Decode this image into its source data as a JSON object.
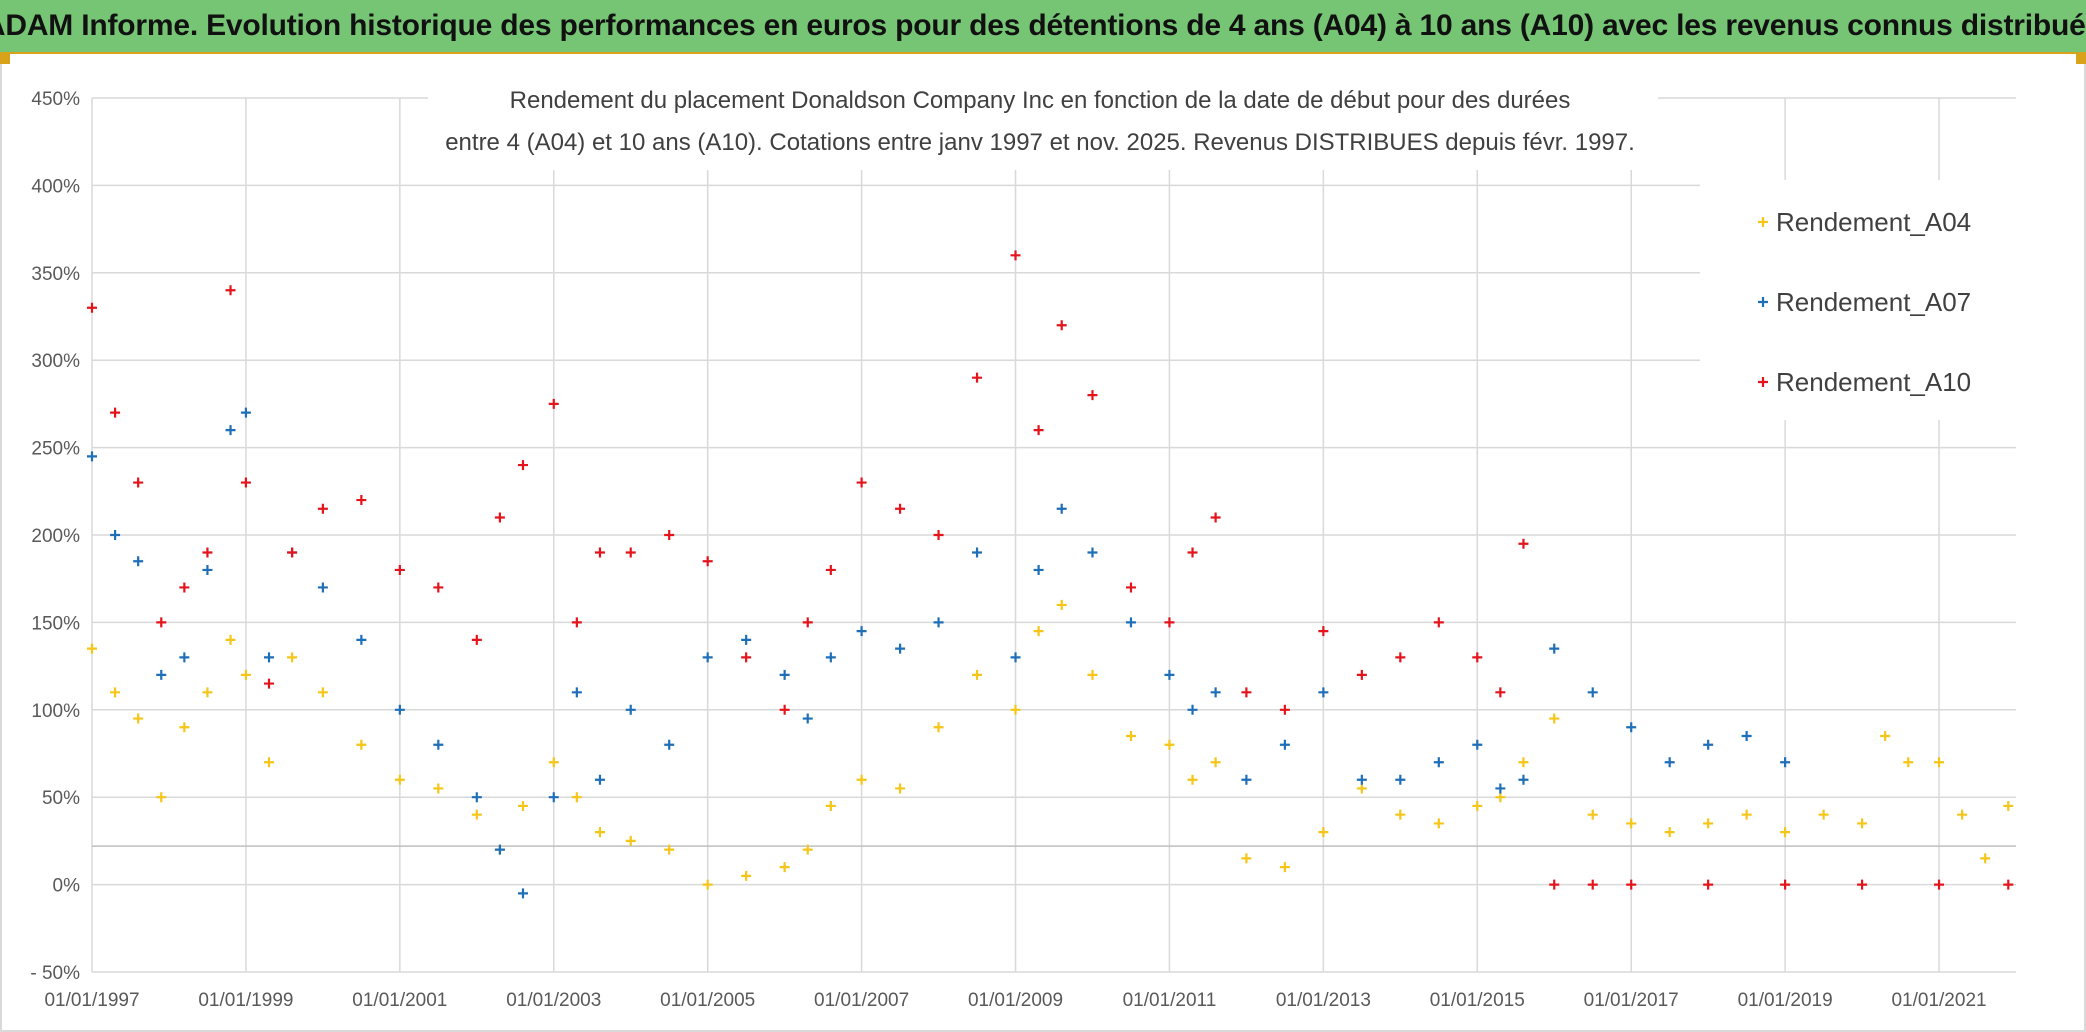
{
  "header": {
    "title": "ADAM Informe. Evolution historique des performances en euros pour des détentions de 4 ans (A04) à 10 ans (A10) avec les revenus connus distribués"
  },
  "chart_data": {
    "type": "scatter",
    "title_line1": "Rendement du placement Donaldson Company Inc en fonction de la date de début pour des durées",
    "title_line2": "entre 4 (A04) et 10 ans (A10). Cotations entre janv 1997 et nov. 2025. Revenus DISTRIBUES depuis févr. 1997.",
    "xlabel": "",
    "ylabel": "",
    "x_range": [
      1997.0,
      2022.0
    ],
    "ylim": [
      -50,
      450
    ],
    "y_ticks": [
      -50,
      0,
      50,
      100,
      150,
      200,
      250,
      300,
      350,
      400,
      450
    ],
    "y_tick_labels": [
      "- 50%",
      "0%",
      "50%",
      "100%",
      "150%",
      "200%",
      "250%",
      "300%",
      "350%",
      "400%",
      "450%"
    ],
    "x_ticks": [
      1997,
      1999,
      2001,
      2003,
      2005,
      2007,
      2009,
      2011,
      2013,
      2015,
      2017,
      2019,
      2021
    ],
    "x_tick_labels": [
      "01/01/1997",
      "01/01/1999",
      "01/01/2001",
      "01/01/2003",
      "01/01/2005",
      "01/01/2007",
      "01/01/2009",
      "01/01/2011",
      "01/01/2013",
      "01/01/2015",
      "01/01/2017",
      "01/01/2019",
      "01/01/2021"
    ],
    "grid": true,
    "legend_position": "top-right",
    "series": [
      {
        "name": "Rendement_A04",
        "color": "#f5c518",
        "x": [
          1997.0,
          1997.3,
          1997.6,
          1997.9,
          1998.2,
          1998.5,
          1998.8,
          1999.0,
          1999.3,
          1999.6,
          2000.0,
          2000.5,
          2001.0,
          2001.5,
          2002.0,
          2002.3,
          2002.6,
          2003.0,
          2003.3,
          2003.6,
          2004.0,
          2004.5,
          2005.0,
          2005.5,
          2006.0,
          2006.3,
          2006.6,
          2007.0,
          2007.5,
          2008.0,
          2008.5,
          2009.0,
          2009.3,
          2009.6,
          2010.0,
          2010.5,
          2011.0,
          2011.3,
          2011.6,
          2012.0,
          2012.5,
          2013.0,
          2013.5,
          2014.0,
          2014.5,
          2015.0,
          2015.3,
          2015.6,
          2016.0,
          2016.5,
          2017.0,
          2017.5,
          2018.0,
          2018.5,
          2019.0,
          2019.5,
          2020.0,
          2020.3,
          2020.6,
          2021.0,
          2021.3,
          2021.6,
          2021.9
        ],
        "values": [
          135,
          110,
          95,
          50,
          90,
          110,
          140,
          120,
          70,
          130,
          110,
          80,
          60,
          55,
          40,
          20,
          45,
          70,
          50,
          30,
          25,
          20,
          0,
          5,
          10,
          20,
          45,
          60,
          55,
          90,
          120,
          100,
          145,
          160,
          120,
          85,
          80,
          60,
          70,
          15,
          10,
          30,
          55,
          40,
          35,
          45,
          50,
          70,
          95,
          40,
          35,
          30,
          35,
          40,
          30,
          40,
          35,
          85,
          70,
          70,
          40,
          15,
          45
        ]
      },
      {
        "name": "Rendement_A07",
        "color": "#1f6fb8",
        "x": [
          1997.0,
          1997.3,
          1997.6,
          1997.9,
          1998.2,
          1998.5,
          1998.8,
          1999.0,
          1999.3,
          1999.6,
          2000.0,
          2000.5,
          2001.0,
          2001.5,
          2002.0,
          2002.3,
          2002.6,
          2003.0,
          2003.3,
          2003.6,
          2004.0,
          2004.5,
          2005.0,
          2005.5,
          2006.0,
          2006.3,
          2006.6,
          2007.0,
          2007.5,
          2008.0,
          2008.5,
          2009.0,
          2009.3,
          2009.6,
          2010.0,
          2010.5,
          2011.0,
          2011.3,
          2011.6,
          2012.0,
          2012.5,
          2013.0,
          2013.5,
          2014.0,
          2014.5,
          2015.0,
          2015.3,
          2015.6,
          2016.0,
          2016.5,
          2017.0,
          2017.5,
          2018.0,
          2018.5,
          2019.0
        ],
        "values": [
          245,
          200,
          185,
          120,
          130,
          180,
          260,
          270,
          130,
          190,
          170,
          140,
          100,
          80,
          50,
          20,
          -5,
          50,
          110,
          60,
          100,
          80,
          130,
          140,
          120,
          95,
          130,
          145,
          135,
          150,
          190,
          130,
          180,
          215,
          190,
          150,
          120,
          100,
          110,
          60,
          80,
          110,
          60,
          60,
          70,
          80,
          55,
          60,
          135,
          110,
          90,
          70,
          80,
          85,
          70
        ]
      },
      {
        "name": "Rendement_A10",
        "color": "#e3141b",
        "x": [
          1997.0,
          1997.3,
          1997.6,
          1997.9,
          1998.2,
          1998.5,
          1998.8,
          1999.0,
          1999.3,
          1999.6,
          2000.0,
          2000.5,
          2001.0,
          2001.5,
          2002.0,
          2002.3,
          2002.6,
          2003.0,
          2003.3,
          2003.6,
          2004.0,
          2004.5,
          2005.0,
          2005.5,
          2006.0,
          2006.3,
          2006.6,
          2007.0,
          2007.5,
          2008.0,
          2008.5,
          2009.0,
          2009.3,
          2009.6,
          2010.0,
          2010.5,
          2011.0,
          2011.3,
          2011.6,
          2012.0,
          2012.5,
          2013.0,
          2013.5,
          2014.0,
          2014.5,
          2015.0,
          2015.3,
          2015.6,
          2016.0,
          2016.5,
          2017.0,
          2018.0,
          2019.0,
          2020.0,
          2021.0,
          2021.9
        ],
        "values": [
          330,
          270,
          230,
          150,
          170,
          190,
          340,
          230,
          115,
          190,
          215,
          220,
          180,
          170,
          140,
          210,
          240,
          275,
          150,
          190,
          190,
          200,
          185,
          130,
          100,
          150,
          180,
          230,
          215,
          200,
          290,
          360,
          260,
          320,
          280,
          170,
          150,
          190,
          210,
          110,
          100,
          145,
          120,
          130,
          150,
          130,
          110,
          195,
          0,
          0,
          0,
          0,
          0,
          0,
          0,
          0
        ]
      }
    ]
  }
}
